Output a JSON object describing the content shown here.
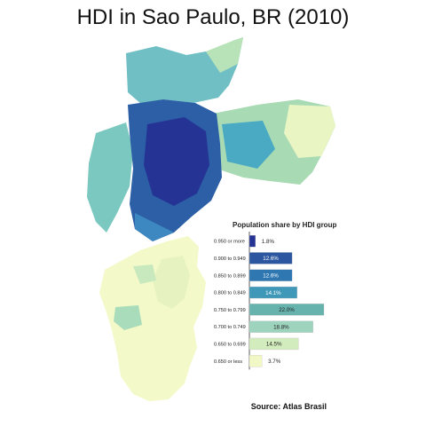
{
  "title": "HDI in Sao Paulo, BR (2010)",
  "source": "Source: Atlas Brasil",
  "chart_data": {
    "type": "bar",
    "title": "Population share by HDI group",
    "categories": [
      "0.950 or more",
      "0.900 to 0.949",
      "0.850 to 0.899",
      "0.800 to 0.849",
      "0.750 to 0.799",
      "0.700 to 0.749",
      "0.650 to 0.699",
      "0.650 or less"
    ],
    "values": [
      1.8,
      12.6,
      12.6,
      14.1,
      22.0,
      18.8,
      14.5,
      3.7
    ],
    "value_labels": [
      "1.8%",
      "12.6%",
      "12.6%",
      "14.1%",
      "22.0%",
      "18.8%",
      "14.5%",
      "3.7%"
    ],
    "colors": [
      "#253494",
      "#2c57a0",
      "#2e77b1",
      "#3f98b8",
      "#66b2ad",
      "#9ed3bd",
      "#d3ecbd",
      "#f2f8c5"
    ],
    "orientation": "horizontal",
    "xlim": [
      0,
      22
    ]
  },
  "map_colors": {
    "very_high": "#253494",
    "high": "#2c7fb8",
    "medium": "#41b6c4",
    "low": "#a1dab4",
    "very_low": "#f5fbc7"
  }
}
